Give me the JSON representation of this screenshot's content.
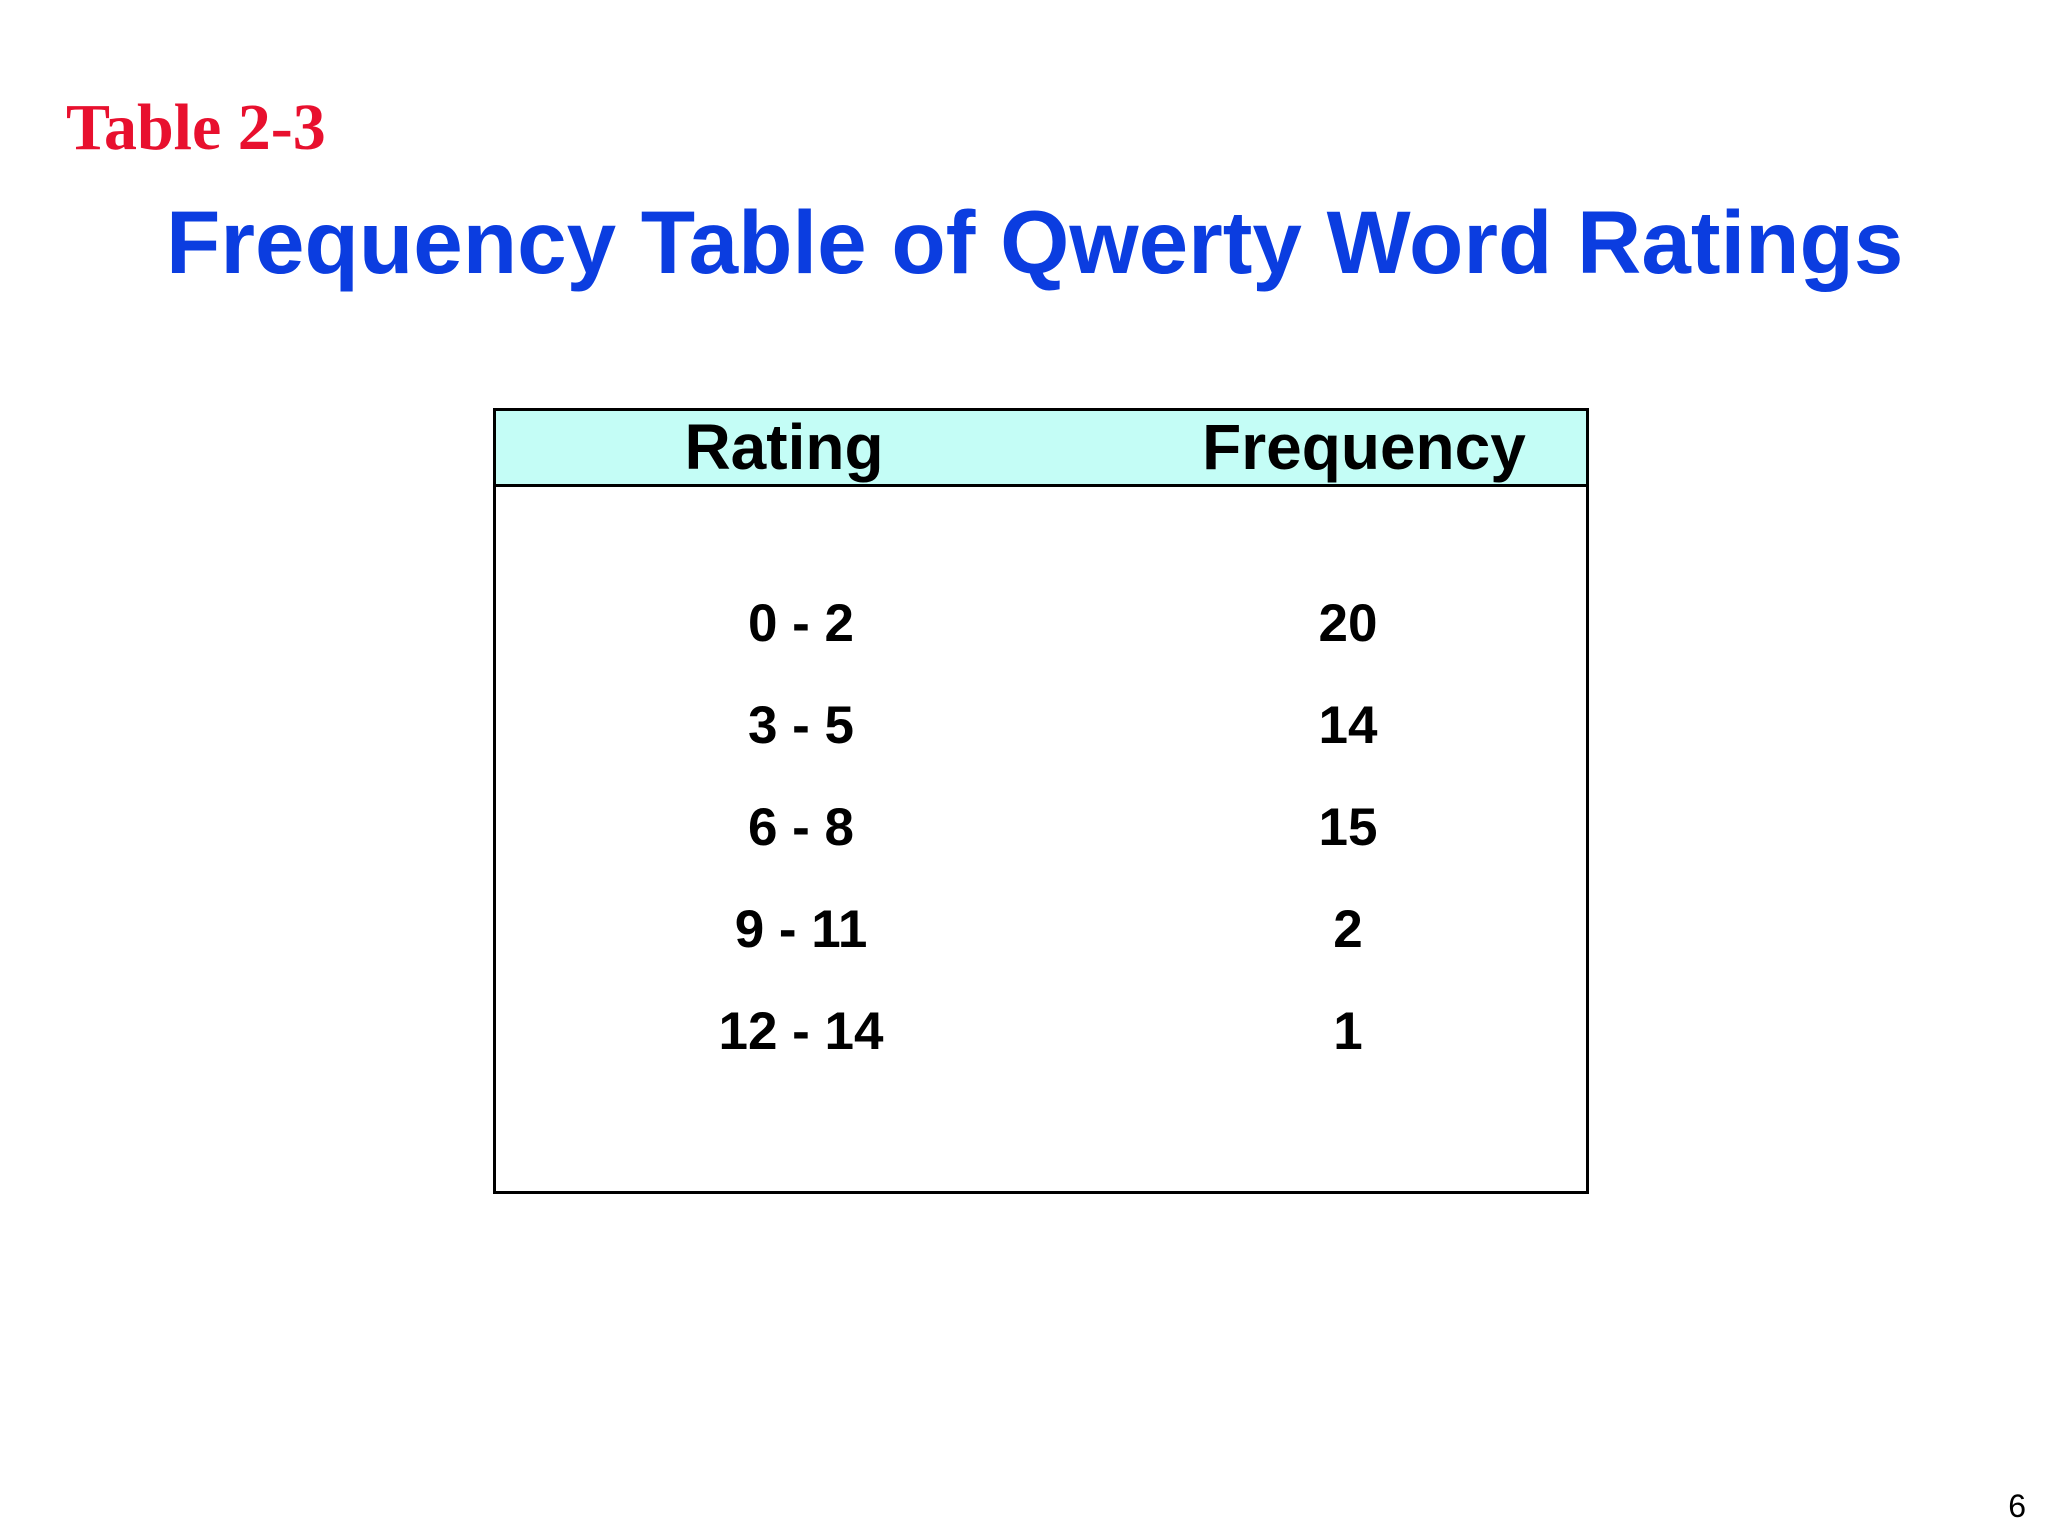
{
  "slide": {
    "table_label": "Table 2-3",
    "title": "Frequency Table of Qwerty Word Ratings",
    "page_number": "6"
  },
  "colors": {
    "table_label": "#e8102e",
    "title": "#0b3de0",
    "header_background": "#c4fdf6",
    "text": "#000000"
  },
  "table": {
    "headers": {
      "rating": "Rating",
      "frequency": "Frequency"
    },
    "rows": [
      {
        "rating": "0 - 2",
        "frequency": "20"
      },
      {
        "rating": "3 - 5",
        "frequency": "14"
      },
      {
        "rating": "6 - 8",
        "frequency": "15"
      },
      {
        "rating": "9 - 11",
        "frequency": "2"
      },
      {
        "rating": "12 - 14",
        "frequency": "1"
      }
    ]
  }
}
